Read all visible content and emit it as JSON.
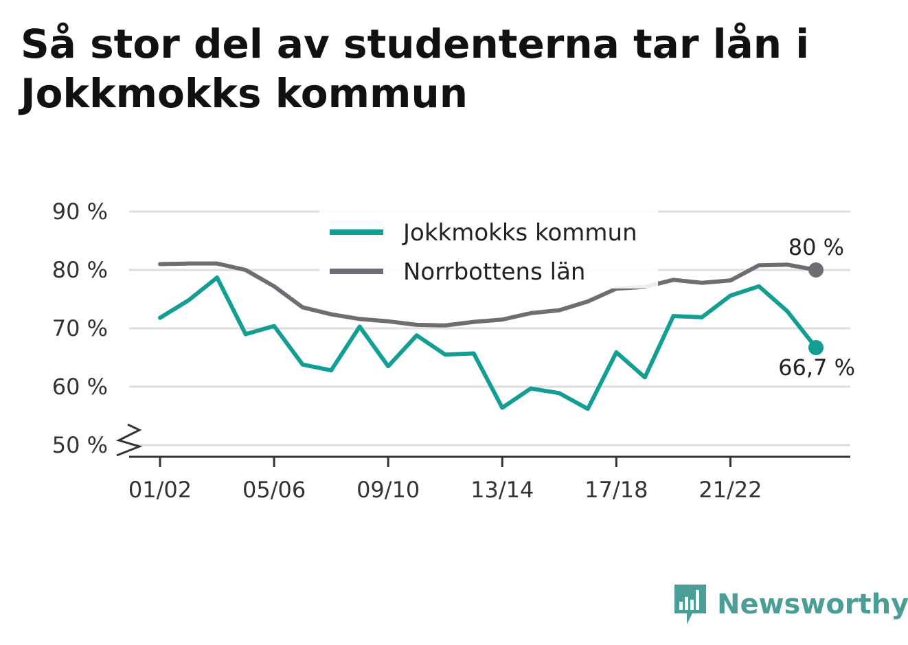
{
  "title": "Så stor del av studenterna tar lån i Jokkmokks kommun",
  "brand": {
    "name": "Newsworthy",
    "color": "#4a9e97"
  },
  "chart_data": {
    "type": "line",
    "title": "Så stor del av studenterna tar lån i Jokkmokks kommun",
    "xlabel": "",
    "ylabel": "",
    "x": [
      "01/02",
      "02/03",
      "03/04",
      "04/05",
      "05/06",
      "06/07",
      "07/08",
      "08/09",
      "09/10",
      "10/11",
      "11/12",
      "12/13",
      "13/14",
      "14/15",
      "15/16",
      "16/17",
      "17/18",
      "18/19",
      "19/20",
      "20/21",
      "21/22",
      "22/23",
      "23/24",
      "24/25"
    ],
    "x_tick_labels": [
      "01/02",
      "05/06",
      "09/10",
      "13/14",
      "17/18",
      "21/22"
    ],
    "ylim": [
      50,
      90
    ],
    "y_ticks": [
      50,
      60,
      70,
      80,
      90
    ],
    "y_tick_labels": [
      "50 %",
      "60 %",
      "70 %",
      "80 %",
      "90 %"
    ],
    "y_axis_break": true,
    "grid": true,
    "legend_position": "top-center",
    "series": [
      {
        "name": "Jokkmokks kommun",
        "color": "#139e93",
        "values": [
          71.8,
          74.8,
          78.7,
          69.0,
          70.4,
          63.8,
          62.8,
          70.3,
          63.5,
          68.8,
          65.5,
          65.7,
          56.4,
          59.7,
          58.9,
          56.2,
          65.9,
          61.6,
          72.1,
          71.9,
          75.6,
          77.2,
          72.9,
          66.7
        ],
        "end_label": "66,7 %"
      },
      {
        "name": "Norrbottens län",
        "color": "#6e6d73",
        "values": [
          81.0,
          81.1,
          81.1,
          80.0,
          77.2,
          73.6,
          72.4,
          71.6,
          71.2,
          70.6,
          70.5,
          71.1,
          71.5,
          72.6,
          73.1,
          74.6,
          76.8,
          77.1,
          78.3,
          77.8,
          78.2,
          80.8,
          80.9,
          80.0
        ],
        "end_label": "80 %"
      }
    ]
  }
}
